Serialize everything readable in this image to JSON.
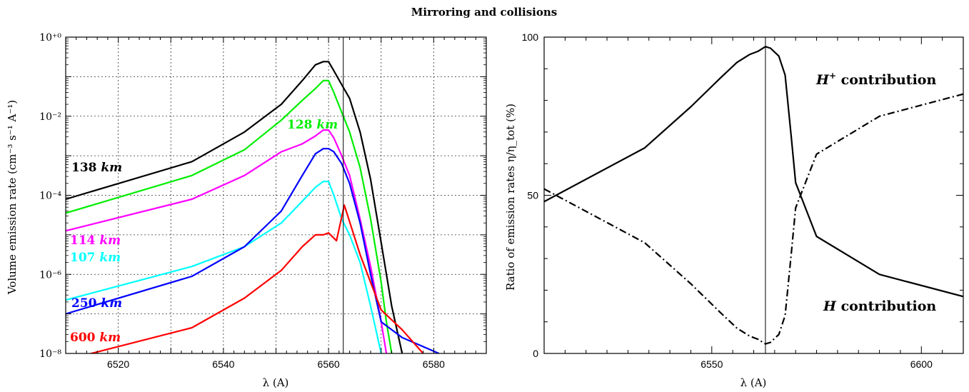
{
  "title": "Mirroring and collisions",
  "chart_data": [
    {
      "type": "line",
      "xlabel": "λ (A)",
      "ylabel": "Volume emission rate (cm⁻³ s⁻¹ A⁻¹)",
      "yscale": "log",
      "xlim": [
        6510,
        6590
      ],
      "ylim_exp": [
        -8,
        0
      ],
      "xticks": [
        6520,
        6540,
        6560,
        6580
      ],
      "ytick_labels": [
        "10⁻⁸",
        "10⁻⁶",
        "10⁻⁴",
        "10⁻²",
        "10⁺⁰"
      ],
      "grid": true,
      "vline": 6562.8,
      "series": [
        {
          "name": "138 km",
          "label_num": "138",
          "color": "#000000",
          "x": [
            6510,
            6534,
            6544,
            6551,
            6555,
            6557.5,
            6559,
            6560,
            6561,
            6562.5,
            6564,
            6566,
            6568,
            6570,
            6572,
            6574
          ],
          "log10": [
            -4.1,
            -3.15,
            -2.4,
            -1.7,
            -1.1,
            -0.7,
            -0.62,
            -0.62,
            -0.85,
            -1.2,
            -1.55,
            -2.4,
            -3.6,
            -5.2,
            -6.8,
            -8.0
          ]
        },
        {
          "name": "128 km",
          "label_num": "128",
          "color": "#00ee00",
          "x": [
            6510,
            6534,
            6544,
            6551,
            6555,
            6557.5,
            6559,
            6560,
            6561,
            6562.5,
            6564,
            6566,
            6568,
            6570,
            6571,
            6572
          ],
          "log10": [
            -4.45,
            -3.5,
            -2.85,
            -2.1,
            -1.6,
            -1.3,
            -1.1,
            -1.1,
            -1.4,
            -1.9,
            -2.4,
            -3.3,
            -4.6,
            -6.2,
            -7.2,
            -8.0
          ]
        },
        {
          "name": "114 km",
          "label_num": "114",
          "color": "#ff00ff",
          "x": [
            6510,
            6534,
            6544,
            6551,
            6555,
            6557.5,
            6559,
            6560,
            6561,
            6562.5,
            6564,
            6566,
            6568,
            6570,
            6571
          ],
          "log10": [
            -4.9,
            -4.1,
            -3.5,
            -2.9,
            -2.7,
            -2.5,
            -2.35,
            -2.35,
            -2.55,
            -3.0,
            -3.5,
            -4.6,
            -5.8,
            -7.2,
            -8.0
          ]
        },
        {
          "name": "107 km",
          "label_num": "107",
          "color": "#00ffff",
          "x": [
            6510,
            6534,
            6544,
            6551,
            6555,
            6557.5,
            6559,
            6560,
            6561,
            6562.5,
            6564,
            6566,
            6568,
            6570
          ],
          "log10": [
            -6.65,
            -5.8,
            -5.3,
            -4.7,
            -4.15,
            -3.8,
            -3.65,
            -3.65,
            -4.0,
            -4.6,
            -5.0,
            -5.7,
            -6.8,
            -8.0
          ]
        },
        {
          "name": "250 km",
          "label_num": "250",
          "color": "#0000ff",
          "x": [
            6510,
            6534,
            6544,
            6551,
            6555,
            6557.5,
            6559,
            6560,
            6561,
            6562.5,
            6564,
            6566,
            6568,
            6570,
            6574,
            6581
          ],
          "log10": [
            -7.0,
            -6.05,
            -5.3,
            -4.4,
            -3.5,
            -2.95,
            -2.82,
            -2.82,
            -2.9,
            -3.2,
            -3.7,
            -4.7,
            -6.0,
            -7.2,
            -7.6,
            -8.0
          ]
        },
        {
          "name": "600 km",
          "label_num": "600",
          "color": "#ff0000",
          "x": [
            6509,
            6534,
            6544,
            6551,
            6555,
            6557.5,
            6559,
            6560,
            6561.5,
            6563,
            6566,
            6568,
            6570,
            6574,
            6578
          ],
          "log10": [
            -8.2,
            -7.35,
            -6.6,
            -5.9,
            -5.3,
            -5.0,
            -5.0,
            -4.95,
            -5.15,
            -4.25,
            -5.5,
            -6.2,
            -6.9,
            -7.4,
            -8.0
          ]
        }
      ]
    },
    {
      "type": "line",
      "xlabel": "λ (A)",
      "ylabel": "Ratio of emission rates η/η_tot (%)",
      "xlim": [
        6510,
        6610
      ],
      "ylim": [
        0,
        100
      ],
      "xticks": [
        6550,
        6600
      ],
      "yticks": [
        0,
        50,
        100
      ],
      "grid": false,
      "vline": 6562.8,
      "series": [
        {
          "name": "H⁺ contribution",
          "label_text": "contribution",
          "label_sym": "H",
          "label_sup": "+",
          "style": "solid",
          "color": "#000000",
          "x": [
            6510,
            6534,
            6545,
            6552,
            6556,
            6559,
            6561,
            6562.8,
            6564,
            6566,
            6567.5,
            6569,
            6570,
            6575,
            6590,
            6610
          ],
          "y": [
            48,
            65,
            78,
            87,
            92,
            94.5,
            95.5,
            97,
            96.5,
            94,
            88,
            68,
            54,
            37,
            25,
            18
          ]
        },
        {
          "name": "H contribution",
          "label_text": "contribution",
          "label_sym": "H",
          "label_sup": "",
          "style": "dashdot",
          "color": "#000000",
          "x": [
            6510,
            6534,
            6545,
            6552,
            6556,
            6559,
            6561,
            6562.8,
            6564,
            6566,
            6567.5,
            6569,
            6570,
            6575,
            6590,
            6610
          ],
          "y": [
            52,
            35,
            22,
            13,
            8,
            5.5,
            4.5,
            3,
            3.5,
            6,
            12,
            32,
            46,
            63,
            75,
            82
          ]
        }
      ]
    }
  ]
}
